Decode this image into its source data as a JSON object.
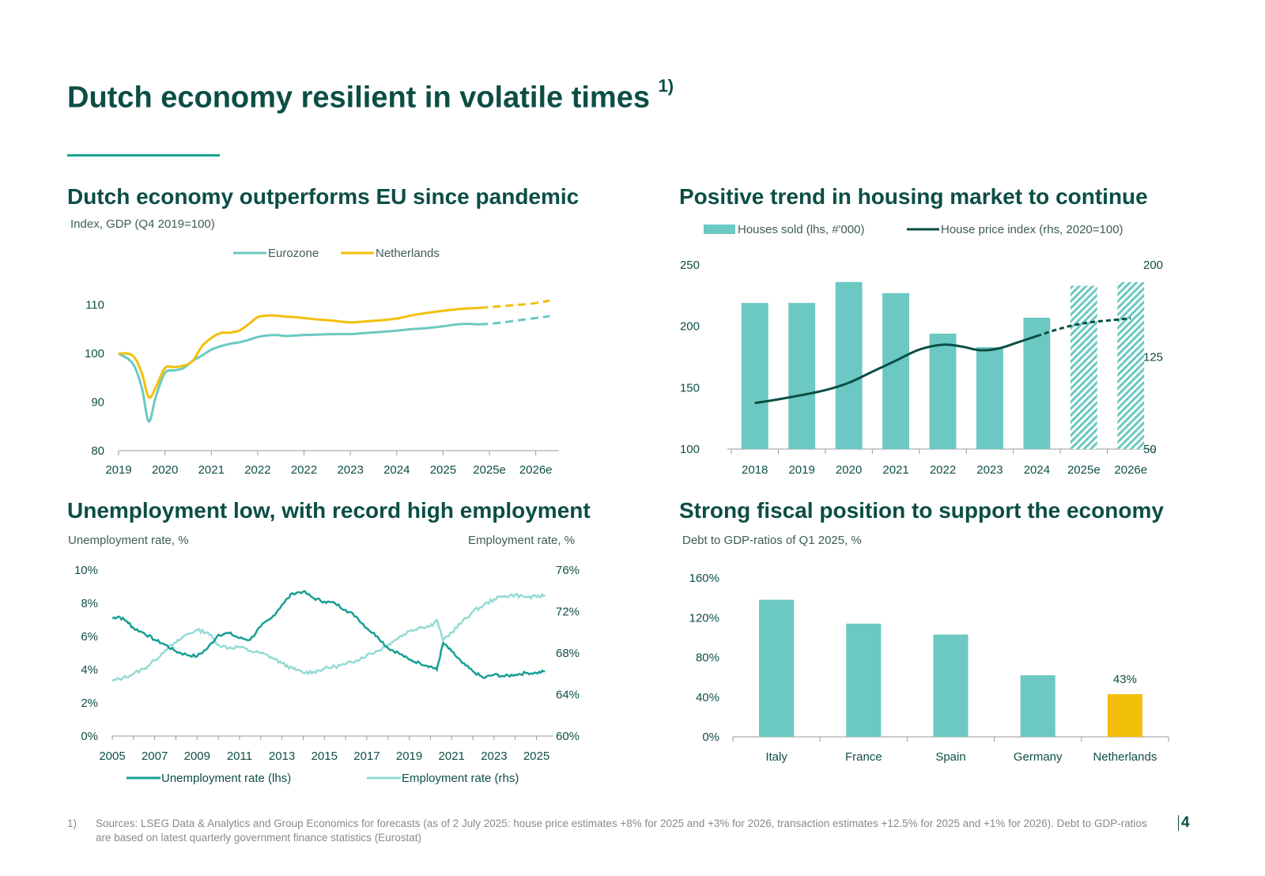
{
  "page": {
    "title": "Dutch economy resilient in volatile times",
    "title_note": "1)",
    "footnote_marker": "1)",
    "footnote": "Sources: LSEG Data & Analytics and Group Economics for forecasts (as of 2 July 2025: house price estimates +8% for 2025 and +3% for 2026, transaction estimates +12.5% for 2025 and +1% for 2026). Debt to GDP-ratios are based on latest quarterly government finance statistics (Eurostat)",
    "page_number": "4"
  },
  "colors": {
    "teal": "#6cc8c2",
    "yellow": "#f2bf0a",
    "dark_teal": "#0b4e45",
    "line_teal": "#17a093",
    "light_teal": "#94dbd4"
  },
  "chart_data": [
    {
      "id": "gdp",
      "type": "line",
      "title": "Dutch economy outperforms EU since pandemic",
      "subtitle": "Index, GDP (Q4 2019=100)",
      "categories": [
        "2019",
        "2020",
        "2021",
        "2022",
        "2022",
        "2023",
        "2024",
        "2025",
        "2025e",
        "2026e"
      ],
      "ylim": [
        80,
        115
      ],
      "yticks": [
        80,
        90,
        100,
        110
      ],
      "legend_position": "top",
      "series": [
        {
          "name": "Eurozone",
          "color": "#6cc8c2",
          "x": [
            0,
            0.3,
            0.5,
            0.65,
            0.8,
            1.0,
            1.2,
            1.4,
            1.6,
            1.8,
            2.0,
            2.2,
            2.4,
            2.6,
            2.8,
            3.0,
            3.2,
            3.4,
            3.6,
            3.8,
            4.0,
            4.3,
            4.6,
            5.0,
            5.3,
            5.6,
            6.0,
            6.3,
            6.6,
            7.0,
            7.4,
            7.8,
            8.2,
            8.6,
            9.0,
            9.3
          ],
          "values": [
            100,
            98,
            93,
            86,
            91,
            96,
            96.5,
            97,
            98.5,
            99.6,
            100.8,
            101.5,
            102,
            102.3,
            102.8,
            103.4,
            103.7,
            103.8,
            103.6,
            103.7,
            103.8,
            103.9,
            104,
            104,
            104.2,
            104.4,
            104.7,
            105,
            105.2,
            105.6,
            106.1,
            106,
            106.3,
            106.8,
            107.3,
            107.7
          ],
          "forecast_from": 7.8
        },
        {
          "name": "Netherlands",
          "color": "#f2bf0a",
          "x": [
            0,
            0.3,
            0.5,
            0.65,
            0.8,
            1.0,
            1.2,
            1.4,
            1.6,
            1.8,
            2.0,
            2.2,
            2.4,
            2.6,
            2.8,
            3.0,
            3.2,
            3.4,
            3.6,
            3.8,
            4.0,
            4.3,
            4.6,
            5.0,
            5.3,
            5.6,
            6.0,
            6.3,
            6.6,
            7.0,
            7.4,
            7.8,
            8.2,
            8.6,
            9.0,
            9.3
          ],
          "values": [
            100,
            99.6,
            96,
            91,
            93,
            97,
            97.2,
            97.5,
            98.5,
            101.5,
            103.2,
            104.2,
            104.3,
            104.7,
            106,
            107.5,
            107.8,
            107.8,
            107.6,
            107.5,
            107.3,
            107,
            106.8,
            106.4,
            106.6,
            106.8,
            107.2,
            107.8,
            108.3,
            108.8,
            109.2,
            109.4,
            109.7,
            110,
            110.4,
            110.9
          ],
          "forecast_from": 7.8
        }
      ]
    },
    {
      "id": "housing",
      "type": "bar",
      "title": "Positive trend in housing market to continue",
      "categories": [
        "2018",
        "2019",
        "2020",
        "2021",
        "2022",
        "2023",
        "2024",
        "2025e",
        "2026e"
      ],
      "ylim": [
        100,
        250
      ],
      "yticks": [
        100,
        150,
        200,
        250
      ],
      "y2lim": [
        50,
        200
      ],
      "y2ticks": [
        50,
        125,
        200
      ],
      "legend_position": "top",
      "series": [
        {
          "name": "Houses sold (lhs, #'000)",
          "color": "#6cc8c2",
          "values": [
            219,
            219,
            236,
            227,
            194,
            183,
            207,
            233,
            236
          ],
          "forecast": [
            false,
            false,
            false,
            false,
            false,
            false,
            false,
            true,
            true
          ]
        },
        {
          "name": "House price index (rhs, 2020=100)",
          "color": "#0b4e45",
          "axis": "rhs",
          "x": [
            0,
            0.5,
            1,
            1.5,
            2,
            2.5,
            3,
            3.5,
            4,
            4.4,
            4.8,
            5.2,
            5.6,
            6.0,
            6.4,
            6.8,
            7.2,
            7.6,
            8.0
          ],
          "values": [
            87.5,
            90.5,
            94,
            98,
            104,
            113,
            122,
            131,
            135,
            133.5,
            130.5,
            132,
            137,
            142,
            147,
            151,
            153.5,
            155,
            156.5
          ],
          "forecast_from": 6.2
        }
      ]
    },
    {
      "id": "labour",
      "type": "line",
      "title": "Unemployment low, with record high employment",
      "subtitle_left": "Unemployment rate, %",
      "subtitle_right": "Employment rate, %",
      "categories": [
        "2005",
        "2007",
        "2009",
        "2011",
        "2013",
        "2015",
        "2017",
        "2019",
        "2021",
        "2023",
        "2025"
      ],
      "ylim": [
        0,
        10
      ],
      "yticks": [
        "0%",
        "2%",
        "4%",
        "6%",
        "8%",
        "10%"
      ],
      "y2lim": [
        60,
        76
      ],
      "y2ticks": [
        "60%",
        "64%",
        "68%",
        "72%",
        "76%"
      ],
      "legend_position": "bottom",
      "series": [
        {
          "name": "Unemployment rate (lhs)",
          "color": "#17a093",
          "x": [
            2005,
            2005.3,
            2005.7,
            2006,
            2006.5,
            2007,
            2007.5,
            2008,
            2008.5,
            2009,
            2009.5,
            2010,
            2010.5,
            2011,
            2011.5,
            2012,
            2012.5,
            2013,
            2013.5,
            2014,
            2014.5,
            2015,
            2015.5,
            2016,
            2016.5,
            2017,
            2017.5,
            2018,
            2018.5,
            2019,
            2019.5,
            2020,
            2020.3,
            2020.6,
            2021,
            2021.5,
            2022,
            2022.5,
            2023,
            2023.5,
            2024,
            2024.5,
            2025,
            2025.4
          ],
          "values": [
            7.1,
            7.2,
            6.9,
            6.5,
            6.2,
            5.8,
            5.5,
            5.1,
            4.9,
            4.8,
            5.3,
            6.1,
            6.2,
            5.9,
            5.8,
            6.6,
            7.1,
            7.9,
            8.6,
            8.7,
            8.3,
            8.1,
            8.0,
            7.6,
            7.2,
            6.5,
            6.0,
            5.3,
            5.0,
            4.6,
            4.4,
            4.2,
            4.0,
            5.6,
            5.1,
            4.4,
            3.9,
            3.5,
            3.7,
            3.6,
            3.7,
            3.8,
            3.8,
            3.9
          ]
        },
        {
          "name": "Employment rate (rhs)",
          "color": "#94dbd4",
          "x": [
            2005,
            2005.5,
            2006,
            2006.5,
            2007,
            2007.5,
            2008,
            2008.5,
            2009,
            2009.5,
            2010,
            2010.5,
            2011,
            2011.5,
            2012,
            2012.5,
            2013,
            2013.5,
            2014,
            2014.5,
            2015,
            2015.5,
            2016,
            2016.5,
            2017,
            2017.5,
            2018,
            2018.5,
            2019,
            2019.5,
            2020,
            2020.3,
            2020.6,
            2021,
            2021.5,
            2022,
            2022.5,
            2023,
            2023.5,
            2024,
            2024.5,
            2025,
            2025.4
          ],
          "values": [
            65.3,
            65.6,
            66.0,
            66.5,
            67.3,
            68.3,
            69.0,
            69.8,
            70.2,
            70.0,
            68.8,
            68.5,
            68.6,
            68.2,
            68.0,
            67.6,
            67.0,
            66.5,
            66.1,
            66.2,
            66.5,
            66.7,
            66.9,
            67.3,
            67.8,
            68.2,
            68.8,
            69.5,
            70.1,
            70.5,
            70.6,
            71.2,
            69.2,
            70.0,
            71.0,
            72.0,
            72.6,
            73.2,
            73.5,
            73.6,
            73.4,
            73.4,
            73.6
          ]
        }
      ]
    },
    {
      "id": "debt",
      "type": "bar",
      "title": "Strong fiscal position to support the economy",
      "subtitle": "Debt to GDP-ratios of Q1 2025, %",
      "categories": [
        "Italy",
        "France",
        "Spain",
        "Germany",
        "Netherlands"
      ],
      "values": [
        138,
        114,
        103,
        62,
        43
      ],
      "colors": [
        "#6cc8c2",
        "#6cc8c2",
        "#6cc8c2",
        "#6cc8c2",
        "#f2bf0a"
      ],
      "data_labels": [
        "",
        "",
        "",
        "",
        "43%"
      ],
      "ylim": [
        0,
        160
      ],
      "yticks": [
        "0%",
        "40%",
        "80%",
        "120%",
        "160%"
      ]
    }
  ]
}
